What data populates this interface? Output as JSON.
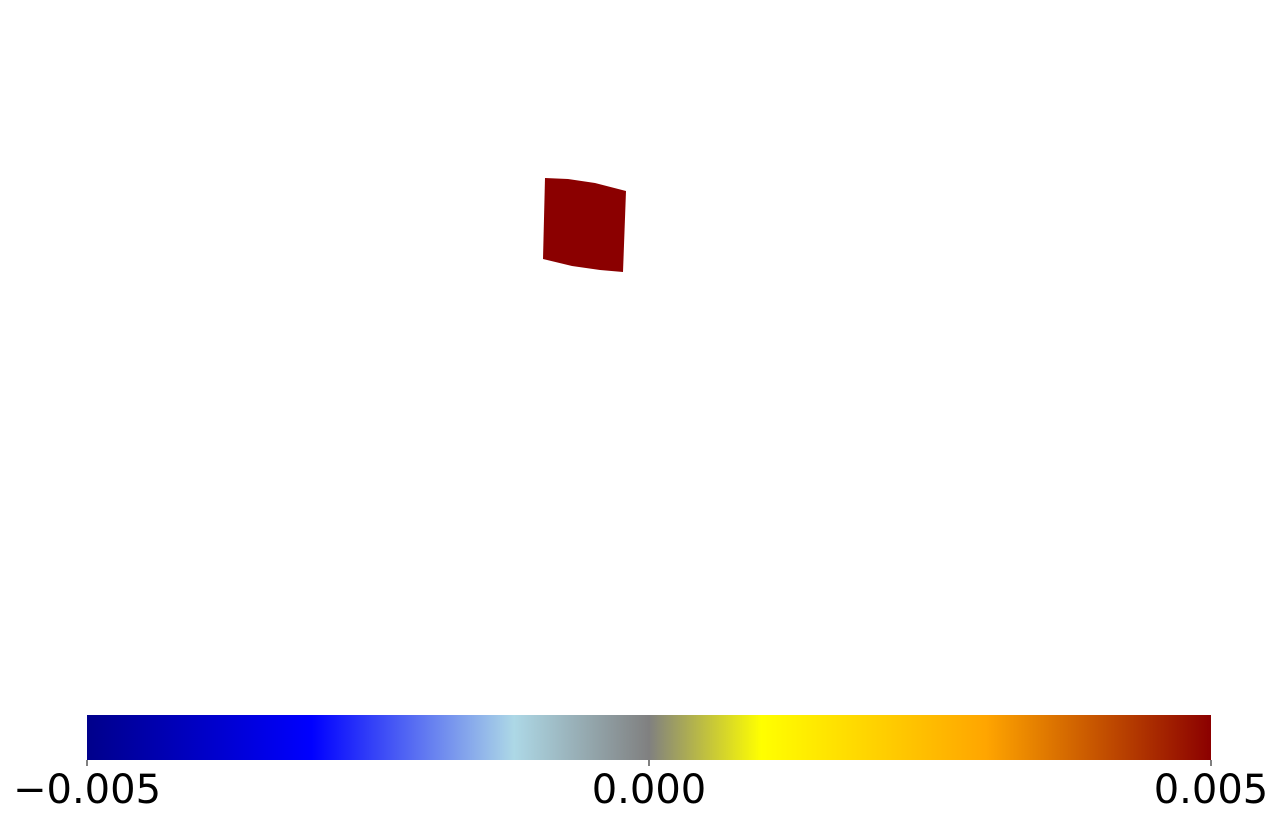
{
  "chart_data": {
    "type": "heatmap",
    "title": "",
    "xlabel": "",
    "ylabel": "",
    "patch": {
      "value": 0.005,
      "color": "#8b0000"
    },
    "colorbar": {
      "orientation": "horizontal",
      "location": "bottom",
      "vmin": -0.005,
      "vmax": 0.005,
      "ticks": [
        {
          "value": -0.005,
          "label": "−0.005"
        },
        {
          "value": 0.0,
          "label": "0.000"
        },
        {
          "value": 0.005,
          "label": "0.005"
        }
      ],
      "color_stops": [
        {
          "value": -0.005,
          "color": "#00008b"
        },
        {
          "value": -0.003,
          "color": "#0000ff"
        },
        {
          "value": -0.0012,
          "color": "#add8e6"
        },
        {
          "value": 0.0,
          "color": "#808080"
        },
        {
          "value": 0.001,
          "color": "#ffff00"
        },
        {
          "value": 0.003,
          "color": "#ffa500"
        },
        {
          "value": 0.005,
          "color": "#8b0000"
        }
      ]
    }
  }
}
